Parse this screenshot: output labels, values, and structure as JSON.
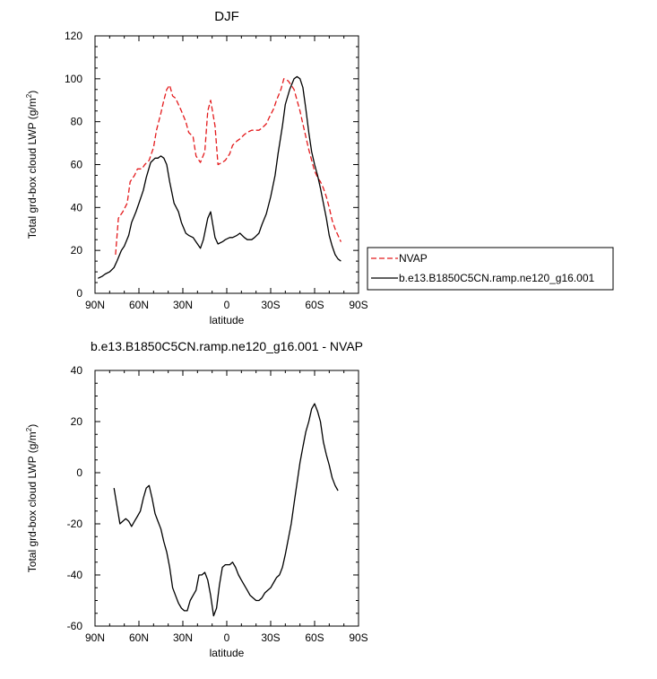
{
  "chart_data": [
    {
      "type": "line",
      "title": "DJF",
      "xlabel": "latitude",
      "ylabel": "Total grd-box cloud LWP (g/m",
      "ylabel_sup": "2",
      "ylabel_end": ")",
      "xlim": [
        90,
        -90
      ],
      "ylim": [
        0,
        120
      ],
      "xticks": [
        {
          "value": 90,
          "label": "90N"
        },
        {
          "value": 60,
          "label": "60N"
        },
        {
          "value": 30,
          "label": "30N"
        },
        {
          "value": 0,
          "label": "0"
        },
        {
          "value": -30,
          "label": "30S"
        },
        {
          "value": -60,
          "label": "60S"
        },
        {
          "value": -90,
          "label": "90S"
        }
      ],
      "yticks": [
        {
          "value": 0,
          "label": "0"
        },
        {
          "value": 20,
          "label": "20"
        },
        {
          "value": 40,
          "label": "40"
        },
        {
          "value": 60,
          "label": "60"
        },
        {
          "value": 80,
          "label": "80"
        },
        {
          "value": 100,
          "label": "100"
        },
        {
          "value": 120,
          "label": "120"
        }
      ],
      "legend": [
        "NVAP",
        "b.e13.B1850C5CN.ramp.ne120_g16.001"
      ],
      "series": [
        {
          "name": "NVAP",
          "color": "#e41a1c",
          "dashed": true,
          "x": [
            76,
            74,
            71,
            68,
            66,
            63,
            61,
            58,
            56,
            53,
            50,
            48,
            45,
            43,
            41,
            39,
            37,
            35,
            33,
            31,
            28,
            26,
            23,
            21,
            18,
            15,
            13,
            11,
            8,
            6,
            3,
            1,
            -2,
            -4,
            -7,
            -9,
            -12,
            -14,
            -17,
            -19,
            -22,
            -24,
            -27,
            -29,
            -32,
            -34,
            -37,
            -39,
            -42,
            -44,
            -46,
            -48,
            -50,
            -52,
            -54,
            -56,
            -58,
            -60,
            -62,
            -64,
            -66,
            -68,
            -70,
            -72,
            -74,
            -76,
            -78
          ],
          "y": [
            18,
            35,
            38,
            42,
            52,
            55,
            58,
            58,
            60,
            62,
            68,
            76,
            84,
            90,
            95,
            97,
            92,
            91,
            88,
            85,
            80,
            75,
            73,
            64,
            61,
            66,
            85,
            90,
            78,
            60,
            61,
            62,
            65,
            69,
            71,
            72,
            74,
            75,
            76,
            76,
            76,
            77,
            79,
            82,
            86,
            90,
            95,
            100,
            99,
            97,
            95,
            90,
            85,
            79,
            73,
            67,
            62,
            57,
            54,
            52,
            49,
            45,
            40,
            34,
            30,
            27,
            24
          ]
        },
        {
          "name": "b.e13.B1850C5CN.ramp.ne120_g16.001",
          "color": "#000000",
          "dashed": false,
          "x": [
            88,
            85,
            83,
            80,
            77,
            75,
            72,
            70,
            67,
            65,
            62,
            60,
            57,
            55,
            52,
            49,
            47,
            45,
            43,
            41,
            39,
            36,
            33,
            31,
            28,
            26,
            23,
            21,
            18,
            16,
            13,
            11,
            8,
            6,
            3,
            1,
            -2,
            -4,
            -7,
            -9,
            -12,
            -14,
            -17,
            -19,
            -22,
            -24,
            -27,
            -30,
            -33,
            -35,
            -38,
            -40,
            -43,
            -46,
            -48,
            -50,
            -52,
            -54,
            -56,
            -58,
            -60,
            -62,
            -64,
            -66,
            -68,
            -70,
            -72,
            -74,
            -76,
            -78
          ],
          "y": [
            7,
            8,
            9,
            10,
            12,
            15,
            20,
            22,
            27,
            33,
            38,
            42,
            48,
            54,
            61,
            63,
            63,
            64,
            63,
            60,
            52,
            42,
            38,
            33,
            28,
            27,
            26,
            24,
            21,
            25,
            35,
            38,
            26,
            23,
            24,
            25,
            26,
            26,
            27,
            28,
            26,
            25,
            25,
            26,
            28,
            32,
            37,
            45,
            55,
            65,
            78,
            88,
            95,
            100,
            101,
            100,
            96,
            86,
            75,
            66,
            60,
            55,
            49,
            42,
            35,
            27,
            22,
            18,
            16,
            15
          ]
        }
      ]
    },
    {
      "type": "line",
      "title": "b.e13.B1850C5CN.ramp.ne120_g16.001 - NVAP",
      "xlabel": "latitude",
      "ylabel": "Total grd-box cloud LWP (g/m",
      "ylabel_sup": "2",
      "ylabel_end": ")",
      "xlim": [
        90,
        -90
      ],
      "ylim": [
        -60,
        40
      ],
      "xticks": [
        {
          "value": 90,
          "label": "90N"
        },
        {
          "value": 60,
          "label": "60N"
        },
        {
          "value": 30,
          "label": "30N"
        },
        {
          "value": 0,
          "label": "0"
        },
        {
          "value": -30,
          "label": "30S"
        },
        {
          "value": -60,
          "label": "60S"
        },
        {
          "value": -90,
          "label": "90S"
        }
      ],
      "yticks": [
        {
          "value": -60,
          "label": "-60"
        },
        {
          "value": -40,
          "label": "-40"
        },
        {
          "value": -20,
          "label": "-20"
        },
        {
          "value": 0,
          "label": "0"
        },
        {
          "value": 20,
          "label": "20"
        },
        {
          "value": 40,
          "label": "40"
        }
      ],
      "series": [
        {
          "name": "b.e13.B1850C5CN.ramp.ne120_g16.001 - NVAP",
          "color": "#000000",
          "dashed": false,
          "x": [
            77,
            75,
            73,
            71,
            69,
            67,
            65,
            63,
            61,
            59,
            57,
            55,
            53,
            51,
            49,
            47,
            45,
            43,
            41,
            39,
            37,
            35,
            33,
            31,
            29,
            27,
            25,
            23,
            21,
            19,
            17,
            15,
            13,
            11,
            9,
            7,
            5,
            3,
            1,
            -2,
            -4,
            -6,
            -8,
            -10,
            -12,
            -14,
            -16,
            -18,
            -20,
            -22,
            -24,
            -26,
            -28,
            -30,
            -32,
            -34,
            -36,
            -38,
            -40,
            -42,
            -44,
            -46,
            -48,
            -50,
            -52,
            -54,
            -56,
            -58,
            -60,
            -62,
            -64,
            -66,
            -68,
            -70,
            -72,
            -74,
            -76
          ],
          "y": [
            -6,
            -13,
            -20,
            -19,
            -18,
            -19,
            -21,
            -19,
            -17,
            -15,
            -10,
            -6,
            -5,
            -10,
            -16,
            -19,
            -22,
            -27,
            -31,
            -37,
            -45,
            -48,
            -51,
            -53,
            -54,
            -54,
            -50,
            -48,
            -46,
            -40,
            -40,
            -39,
            -42,
            -48,
            -56,
            -53,
            -44,
            -37,
            -36,
            -36,
            -35,
            -37,
            -40,
            -42,
            -44,
            -46,
            -48,
            -49,
            -50,
            -50,
            -49,
            -47,
            -46,
            -45,
            -43,
            -41,
            -40,
            -37,
            -32,
            -26,
            -20,
            -12,
            -4,
            4,
            10,
            16,
            20,
            25,
            27,
            24,
            20,
            12,
            7,
            3,
            -2,
            -5,
            -7
          ]
        }
      ]
    }
  ]
}
